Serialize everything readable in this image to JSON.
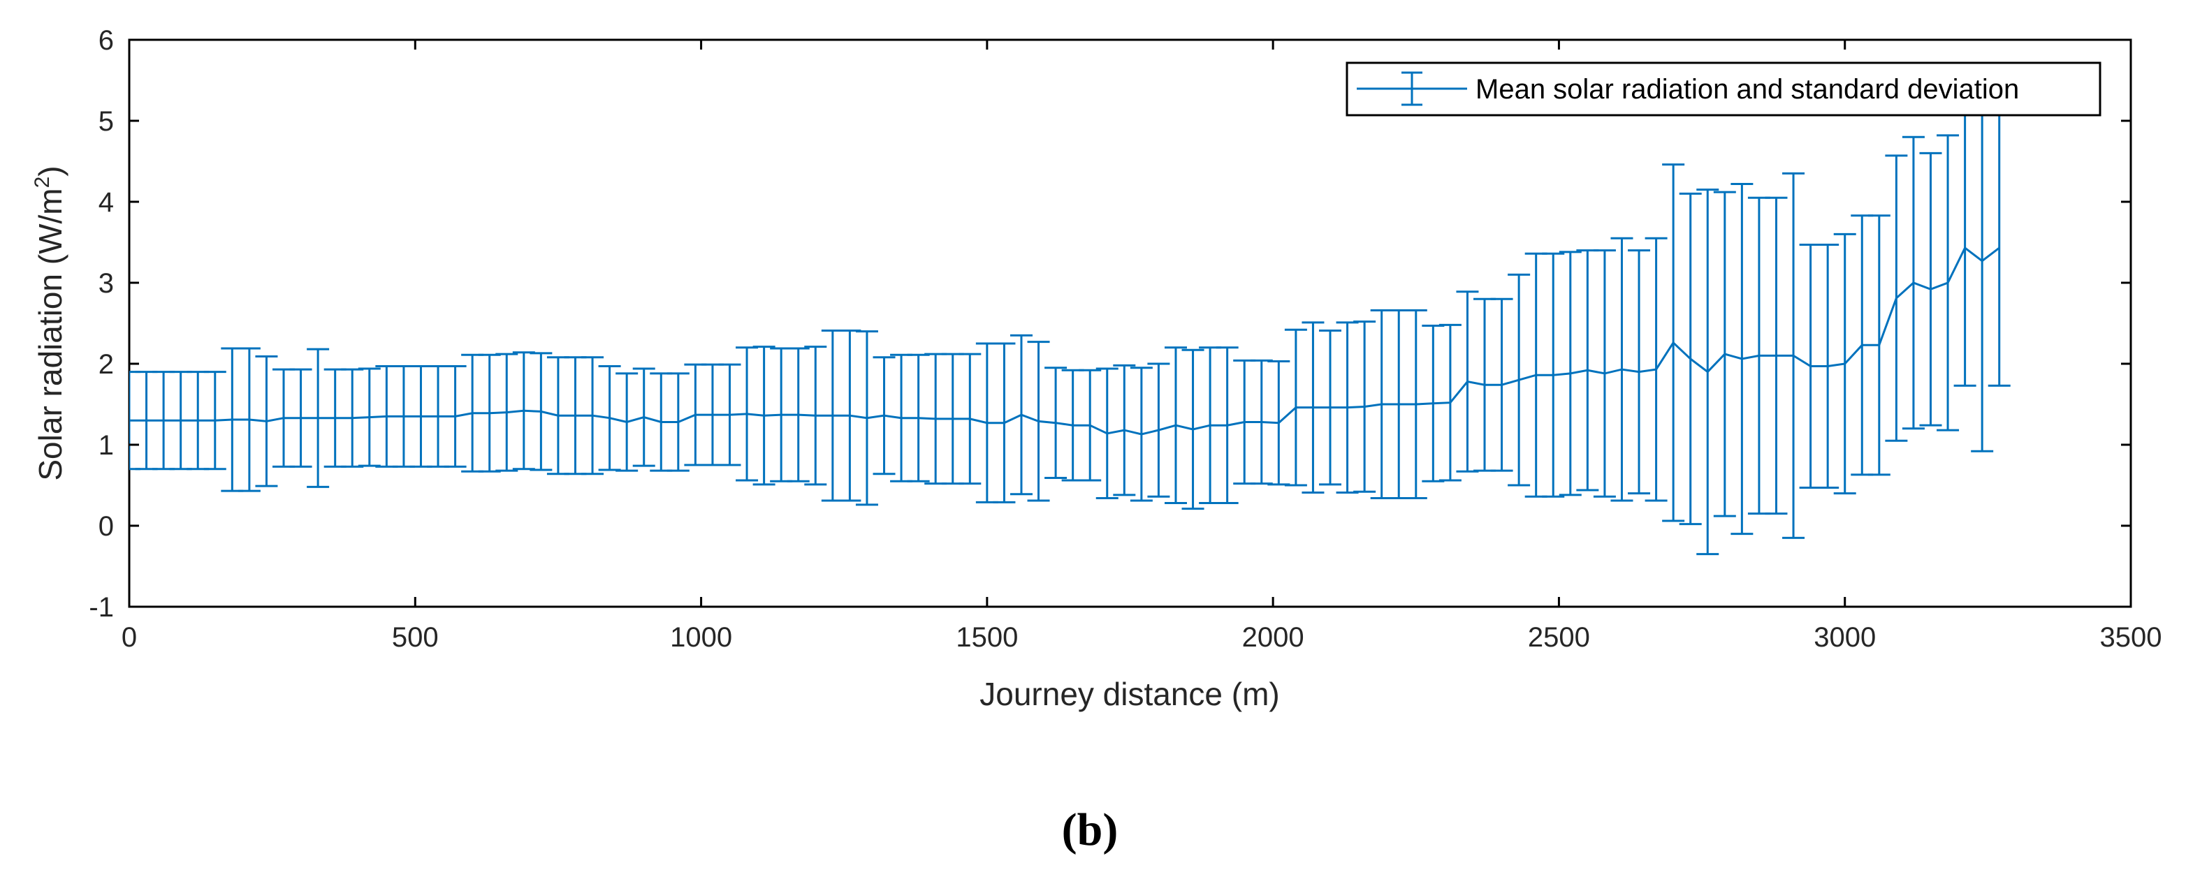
{
  "chart_data": {
    "type": "line",
    "subtype": "errorbar",
    "title": "",
    "xlabel": "Journey distance (m)",
    "ylabel_main": "Solar radiation (W/m",
    "ylabel_superscript": "2",
    "ylabel_close": ")",
    "xlim": [
      0,
      3500
    ],
    "ylim": [
      -1,
      6
    ],
    "xticks": [
      0,
      500,
      1000,
      1500,
      2000,
      2500,
      3000,
      3500
    ],
    "yticks": [
      -1,
      0,
      1,
      2,
      3,
      4,
      5,
      6
    ],
    "grid": false,
    "legend_position": "top-right",
    "caption": "(b)",
    "colors": {
      "series": "#0072BD",
      "axis": "#262626",
      "frame": "#000000"
    },
    "series": [
      {
        "name": "Mean solar radiation and standard deviation",
        "x": [
          0,
          30,
          60,
          90,
          120,
          150,
          180,
          210,
          240,
          270,
          300,
          330,
          360,
          390,
          420,
          450,
          480,
          510,
          540,
          570,
          600,
          630,
          660,
          690,
          720,
          750,
          780,
          810,
          840,
          870,
          900,
          930,
          960,
          990,
          1020,
          1050,
          1080,
          1110,
          1140,
          1170,
          1200,
          1230,
          1260,
          1290,
          1320,
          1350,
          1380,
          1410,
          1440,
          1470,
          1500,
          1530,
          1560,
          1590,
          1620,
          1650,
          1680,
          1710,
          1740,
          1770,
          1800,
          1830,
          1860,
          1890,
          1920,
          1950,
          1980,
          2010,
          2040,
          2070,
          2100,
          2130,
          2160,
          2190,
          2220,
          2250,
          2280,
          2310,
          2340,
          2370,
          2400,
          2430,
          2460,
          2490,
          2520,
          2550,
          2580,
          2610,
          2640,
          2670,
          2700,
          2730,
          2760,
          2790,
          2820,
          2850,
          2880,
          2910,
          2940,
          2970,
          3000,
          3030,
          3060,
          3090,
          3120,
          3150,
          3180,
          3210,
          3240,
          3270
        ],
        "mean": [
          1.3,
          1.3,
          1.3,
          1.3,
          1.3,
          1.3,
          1.31,
          1.31,
          1.29,
          1.33,
          1.33,
          1.33,
          1.33,
          1.33,
          1.34,
          1.35,
          1.35,
          1.35,
          1.35,
          1.35,
          1.39,
          1.39,
          1.4,
          1.42,
          1.41,
          1.36,
          1.36,
          1.36,
          1.33,
          1.28,
          1.34,
          1.28,
          1.28,
          1.37,
          1.37,
          1.37,
          1.38,
          1.36,
          1.37,
          1.37,
          1.36,
          1.36,
          1.36,
          1.33,
          1.36,
          1.33,
          1.33,
          1.32,
          1.32,
          1.32,
          1.27,
          1.27,
          1.37,
          1.29,
          1.27,
          1.24,
          1.24,
          1.14,
          1.18,
          1.13,
          1.18,
          1.24,
          1.19,
          1.24,
          1.24,
          1.28,
          1.28,
          1.27,
          1.46,
          1.46,
          1.46,
          1.46,
          1.47,
          1.5,
          1.5,
          1.5,
          1.51,
          1.52,
          1.78,
          1.74,
          1.74,
          1.8,
          1.86,
          1.86,
          1.88,
          1.92,
          1.88,
          1.93,
          1.9,
          1.93,
          2.26,
          2.06,
          1.9,
          2.12,
          2.06,
          2.1,
          2.1,
          2.1,
          1.97,
          1.97,
          2.0,
          2.23,
          2.23,
          2.81,
          3.0,
          2.92,
          3.0,
          3.43,
          3.27,
          3.43
        ],
        "sd": [
          0.6,
          0.6,
          0.6,
          0.6,
          0.6,
          0.6,
          0.88,
          0.88,
          0.8,
          0.6,
          0.6,
          0.85,
          0.6,
          0.6,
          0.6,
          0.62,
          0.62,
          0.62,
          0.62,
          0.62,
          0.72,
          0.72,
          0.72,
          0.72,
          0.72,
          0.72,
          0.72,
          0.72,
          0.64,
          0.6,
          0.6,
          0.6,
          0.6,
          0.62,
          0.62,
          0.62,
          0.82,
          0.85,
          0.82,
          0.82,
          0.85,
          1.05,
          1.05,
          1.07,
          0.72,
          0.78,
          0.78,
          0.8,
          0.8,
          0.8,
          0.98,
          0.98,
          0.98,
          0.98,
          0.68,
          0.68,
          0.68,
          0.8,
          0.8,
          0.82,
          0.82,
          0.96,
          0.98,
          0.96,
          0.96,
          0.76,
          0.76,
          0.76,
          0.96,
          1.05,
          0.95,
          1.05,
          1.05,
          1.16,
          1.16,
          1.16,
          0.96,
          0.96,
          1.11,
          1.06,
          1.06,
          1.3,
          1.5,
          1.5,
          1.5,
          1.48,
          1.52,
          1.62,
          1.5,
          1.62,
          2.2,
          2.04,
          2.25,
          2.0,
          2.16,
          1.95,
          1.95,
          2.25,
          1.5,
          1.5,
          1.6,
          1.6,
          1.6,
          1.76,
          1.8,
          1.68,
          1.82,
          1.7,
          2.35,
          1.7
        ]
      }
    ]
  }
}
